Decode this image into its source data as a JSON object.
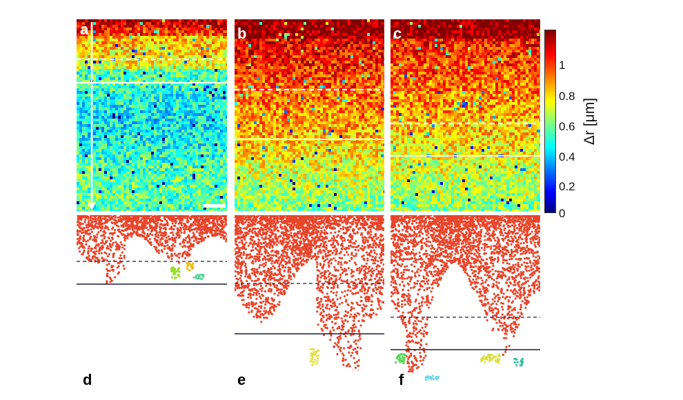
{
  "panels": {
    "a": "a",
    "b": "b",
    "c": "c",
    "d": "d",
    "e": "e",
    "f": "f"
  },
  "colorbar": {
    "label": "Δr [μm]",
    "ticks": [
      "1",
      "0.8",
      "0.6",
      "0.4",
      "0.2",
      "0"
    ],
    "range": [
      0,
      1.2
    ],
    "colormap": "jet"
  },
  "colors": {
    "cluster": "#e8452a",
    "guide_line": "#ffffff",
    "ref_line": "#1a1a3a"
  }
}
